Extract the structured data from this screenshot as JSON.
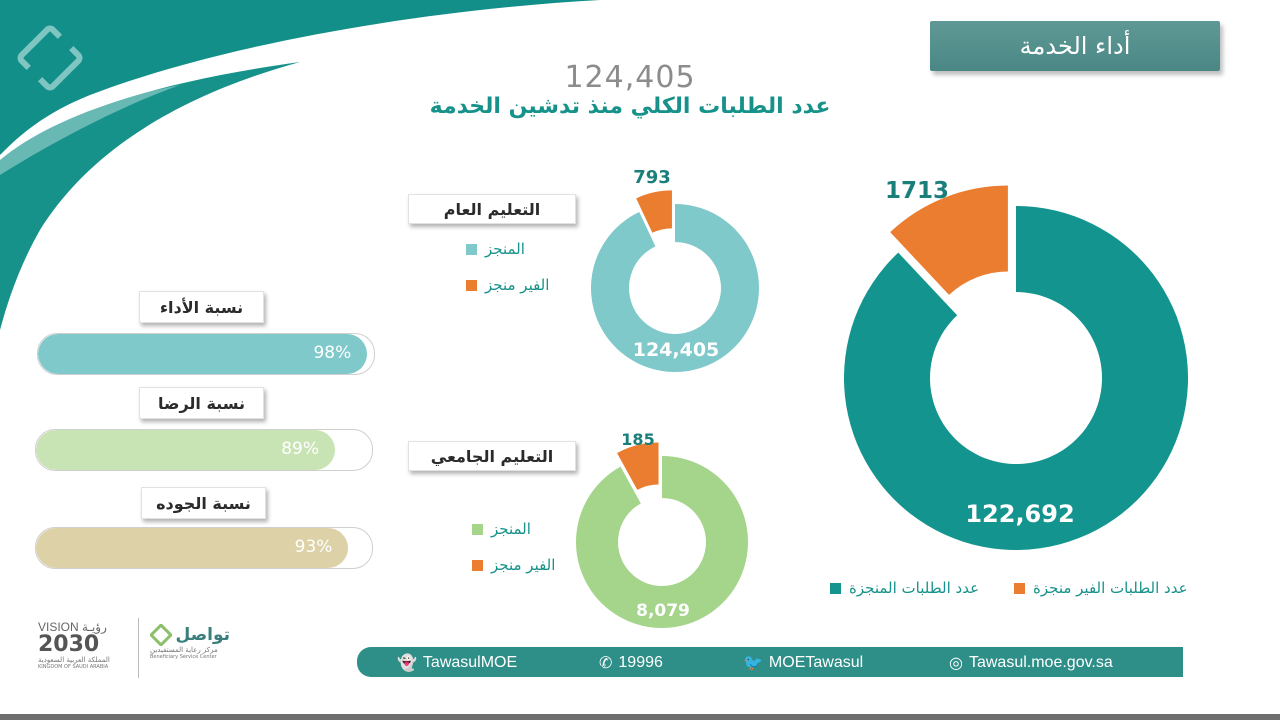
{
  "header": {
    "title": "أداء الخدمة",
    "total_value": "124,405",
    "total_label": "عدد الطلبات الكلي منذ تدشين الخدمة"
  },
  "colors": {
    "teal_dark": "#13948e",
    "teal_light": "#80c9ca",
    "green_light": "#a5d48b",
    "orange": "#ea7d2f",
    "accent_text": "#17928a"
  },
  "general_education": {
    "label": "التعليم العام",
    "legend_done": "المنجز",
    "legend_not_done": "الفير منجز"
  },
  "university_education": {
    "label": "التعليم الجامعي",
    "legend_done": "المنجز",
    "legend_not_done": "الفير منجز"
  },
  "main_legend": {
    "done": "عدد الطلبات المنجزة",
    "not_done": "عدد الطلبات الفير منجزة"
  },
  "metrics": [
    {
      "label": "نسبة الأداء",
      "value_text": "98%",
      "value": 98,
      "color": "#80c9ca"
    },
    {
      "label": "نسبة الرضا",
      "value_text": "89%",
      "value": 89,
      "color": "#c8e4b4"
    },
    {
      "label": "نسبة الجوده",
      "value_text": "93%",
      "value": 93,
      "color": "#ddd1a8"
    }
  ],
  "footer": {
    "snapchat": "TawasulMOE",
    "phone": "19996",
    "twitter": "MOETawasul",
    "website": "Tawasul.moe.gov.sa"
  },
  "logos": {
    "vision_text": "VISION رؤيـة",
    "vision_year": "2030",
    "vision_sub_ar": "المملكة العربية السعودية",
    "vision_sub_en": "KINGDOM OF SAUDI ARABIA",
    "tawasul_name": "تواصل",
    "tawasul_sub_ar": "مركز رعاية المستفيدين",
    "tawasul_sub_en": "Beneficiary Service Center"
  },
  "chart_data": [
    {
      "type": "pie",
      "title": "عدد الطلبات",
      "categories": [
        "عدد الطلبات المنجزة",
        "عدد الطلبات الفير منجزة"
      ],
      "values": [
        122692,
        1713
      ],
      "value_labels": [
        "122,692",
        "1713"
      ],
      "colors": [
        "#13948e",
        "#ea7d2f"
      ]
    },
    {
      "type": "pie",
      "title": "التعليم العام",
      "categories": [
        "المنجز",
        "الفير منجز"
      ],
      "values": [
        124405,
        793
      ],
      "value_labels": [
        "124,405",
        "793"
      ],
      "colors": [
        "#80c9ca",
        "#ea7d2f"
      ]
    },
    {
      "type": "pie",
      "title": "التعليم الجامعي",
      "categories": [
        "المنجز",
        "الفير منجز"
      ],
      "values": [
        8079,
        185
      ],
      "value_labels": [
        "8,079",
        "185"
      ],
      "colors": [
        "#a5d48b",
        "#ea7d2f"
      ]
    }
  ]
}
